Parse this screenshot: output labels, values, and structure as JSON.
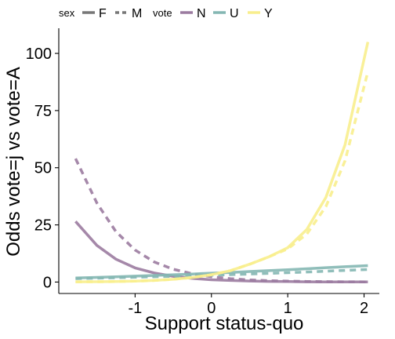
{
  "chart_data": {
    "type": "line",
    "xlabel": "Support status-quo",
    "ylabel": "Odds vote=j vs vote=A",
    "xlim": [
      -2.0,
      2.2
    ],
    "ylim": [
      -5,
      111
    ],
    "xticks": [
      -1,
      0,
      1,
      2
    ],
    "yticks": [
      0,
      25,
      50,
      75,
      100
    ],
    "xtick_labels": [
      "-1",
      "0",
      "1",
      "2"
    ],
    "ytick_labels": [
      "0",
      "25",
      "50",
      "75",
      "100"
    ],
    "grid": false,
    "legend": {
      "placement": "top",
      "groups": [
        {
          "title": "sex",
          "entries": [
            {
              "label": "F",
              "linetype": "solid",
              "color": "#777777"
            },
            {
              "label": "M",
              "linetype": "dashed",
              "color": "#777777"
            }
          ]
        },
        {
          "title": "vote",
          "entries": [
            {
              "label": "N",
              "color": "#9B7BA0"
            },
            {
              "label": "U",
              "color": "#84B7B3"
            },
            {
              "label": "Y",
              "color": "#F8EE8D"
            }
          ]
        }
      ]
    },
    "x": [
      -1.78,
      -1.5,
      -1.25,
      -1.0,
      -0.75,
      -0.5,
      -0.25,
      0.0,
      0.25,
      0.5,
      0.75,
      1.0,
      1.25,
      1.5,
      1.75,
      2.05
    ],
    "series": [
      {
        "vote": "N",
        "sex": "F",
        "color": "#9B7BA0",
        "linetype": "solid",
        "values": [
          26.5,
          16.0,
          10.0,
          6.2,
          4.0,
          2.5,
          1.6,
          1.0,
          0.7,
          0.45,
          0.3,
          0.2,
          0.13,
          0.09,
          0.06,
          0.04
        ]
      },
      {
        "vote": "N",
        "sex": "M",
        "color": "#9B7BA0",
        "linetype": "dashed",
        "values": [
          54.0,
          34.5,
          22.0,
          14.0,
          8.8,
          5.6,
          3.6,
          2.3,
          1.5,
          0.95,
          0.6,
          0.4,
          0.26,
          0.17,
          0.11,
          0.07
        ]
      },
      {
        "vote": "U",
        "sex": "F",
        "color": "#84B7B3",
        "linetype": "solid",
        "values": [
          1.8,
          2.05,
          2.3,
          2.6,
          2.9,
          3.2,
          3.5,
          3.9,
          4.2,
          4.6,
          5.0,
          5.4,
          5.8,
          6.3,
          6.7,
          7.2
        ]
      },
      {
        "vote": "U",
        "sex": "M",
        "color": "#84B7B3",
        "linetype": "dashed",
        "values": [
          1.5,
          1.7,
          1.9,
          2.1,
          2.3,
          2.5,
          2.75,
          3.0,
          3.25,
          3.5,
          3.8,
          4.1,
          4.4,
          4.75,
          5.1,
          5.5
        ]
      },
      {
        "vote": "Y",
        "sex": "F",
        "color": "#F8EE8D",
        "linetype": "solid",
        "values": [
          0.1,
          0.15,
          0.25,
          0.4,
          0.7,
          1.2,
          2.0,
          3.2,
          5.0,
          7.8,
          11.0,
          15.0,
          23.0,
          37.0,
          60.0,
          105.0
        ]
      },
      {
        "vote": "Y",
        "sex": "M",
        "color": "#F8EE8D",
        "linetype": "dashed",
        "values": [
          0.1,
          0.15,
          0.25,
          0.4,
          0.7,
          1.2,
          2.0,
          3.2,
          5.0,
          7.8,
          11.0,
          14.5,
          21.0,
          33.0,
          53.0,
          92.0
        ]
      }
    ]
  }
}
